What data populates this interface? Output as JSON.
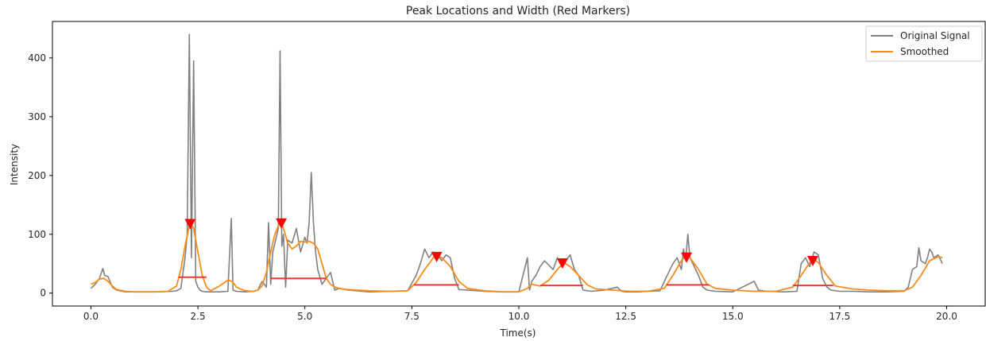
{
  "chart_data": {
    "type": "line",
    "title": "Peak Locations and Width (Red Markers)",
    "xlabel": "Time(s)",
    "ylabel": "Intensity",
    "xlim": [
      -0.9,
      20.9
    ],
    "ylim": [
      -22,
      462
    ],
    "x_ticks": [
      0.0,
      2.5,
      5.0,
      7.5,
      10.0,
      12.5,
      15.0,
      17.5,
      20.0
    ],
    "x_tick_labels": [
      "0.0",
      "2.5",
      "5.0",
      "7.5",
      "10.0",
      "12.5",
      "15.0",
      "17.5",
      "20.0"
    ],
    "y_ticks": [
      0,
      100,
      200,
      300,
      400
    ],
    "y_tick_labels": [
      "0",
      "100",
      "200",
      "300",
      "400"
    ],
    "grid": false,
    "legend_position": "top-right",
    "colors": {
      "original": "#808080",
      "smoothed": "#ff8c1a",
      "markers": "#ff0000",
      "width_lines": "#ee3a2e"
    },
    "series": [
      {
        "name": "Original Signal",
        "x": [
          0.0,
          0.1,
          0.2,
          0.28,
          0.32,
          0.4,
          0.5,
          0.6,
          0.8,
          1.0,
          1.3,
          1.6,
          1.9,
          2.0,
          2.1,
          2.2,
          2.25,
          2.3,
          2.35,
          2.4,
          2.45,
          2.5,
          2.55,
          2.6,
          2.7,
          2.8,
          3.0,
          3.2,
          3.28,
          3.32,
          3.4,
          3.6,
          3.8,
          3.9,
          4.0,
          4.1,
          4.15,
          4.2,
          4.25,
          4.3,
          4.38,
          4.42,
          4.46,
          4.5,
          4.55,
          4.6,
          4.7,
          4.8,
          4.9,
          5.0,
          5.05,
          5.1,
          5.15,
          5.2,
          5.25,
          5.3,
          5.4,
          5.5,
          5.6,
          5.7,
          5.8,
          6.0,
          6.5,
          7.0,
          7.4,
          7.6,
          7.7,
          7.8,
          7.9,
          8.0,
          8.1,
          8.2,
          8.3,
          8.4,
          8.5,
          8.6,
          8.8,
          9.2,
          9.6,
          10.0,
          10.2,
          10.25,
          10.3,
          10.4,
          10.5,
          10.6,
          10.8,
          10.9,
          11.0,
          11.1,
          11.2,
          11.3,
          11.4,
          11.5,
          11.7,
          12.0,
          12.3,
          12.4,
          12.5,
          12.8,
          13.0,
          13.3,
          13.5,
          13.6,
          13.7,
          13.8,
          13.85,
          13.9,
          13.95,
          14.0,
          14.1,
          14.2,
          14.3,
          14.4,
          14.6,
          15.0,
          15.5,
          15.6,
          15.8,
          16.2,
          16.5,
          16.6,
          16.7,
          16.8,
          16.9,
          17.0,
          17.1,
          17.2,
          17.3,
          17.5,
          17.8,
          18.2,
          18.6,
          19.0,
          19.1,
          19.2,
          19.3,
          19.35,
          19.4,
          19.5,
          19.55,
          19.6,
          19.65,
          19.7,
          19.8,
          19.9
        ],
        "y": [
          8,
          15,
          25,
          42,
          30,
          28,
          10,
          5,
          2,
          2,
          2,
          2,
          3,
          4,
          8,
          60,
          100,
          440,
          60,
          395,
          20,
          10,
          5,
          3,
          2,
          2,
          2,
          3,
          127,
          5,
          3,
          2,
          3,
          5,
          20,
          10,
          120,
          15,
          70,
          85,
          110,
          412,
          80,
          100,
          10,
          90,
          85,
          110,
          70,
          95,
          85,
          120,
          205,
          120,
          70,
          40,
          15,
          25,
          35,
          5,
          8,
          5,
          2,
          3,
          4,
          30,
          50,
          75,
          60,
          70,
          65,
          55,
          65,
          60,
          25,
          6,
          5,
          3,
          2,
          2,
          60,
          5,
          20,
          30,
          45,
          55,
          40,
          60,
          45,
          55,
          65,
          40,
          30,
          5,
          3,
          5,
          10,
          3,
          2,
          2,
          3,
          4,
          35,
          50,
          60,
          40,
          75,
          55,
          100,
          60,
          45,
          30,
          10,
          5,
          3,
          2,
          20,
          5,
          3,
          2,
          3,
          50,
          60,
          45,
          70,
          65,
          25,
          10,
          5,
          3,
          3,
          2,
          2,
          3,
          10,
          40,
          45,
          77,
          55,
          50,
          60,
          75,
          70,
          60,
          65,
          50
        ]
      },
      {
        "name": "Smoothed",
        "x": [
          0.0,
          0.1,
          0.2,
          0.3,
          0.4,
          0.5,
          0.6,
          0.8,
          1.0,
          1.5,
          1.8,
          2.0,
          2.1,
          2.2,
          2.3,
          2.35,
          2.4,
          2.5,
          2.6,
          2.7,
          2.8,
          3.0,
          3.2,
          3.3,
          3.4,
          3.6,
          3.8,
          3.9,
          4.0,
          4.1,
          4.2,
          4.3,
          4.4,
          4.45,
          4.5,
          4.6,
          4.7,
          4.8,
          4.9,
          5.0,
          5.1,
          5.2,
          5.3,
          5.4,
          5.5,
          5.6,
          5.7,
          5.8,
          6.0,
          6.5,
          7.0,
          7.4,
          7.6,
          7.8,
          8.0,
          8.1,
          8.2,
          8.4,
          8.6,
          8.8,
          9.2,
          9.6,
          10.0,
          10.2,
          10.3,
          10.5,
          10.7,
          10.9,
          11.05,
          11.2,
          11.4,
          11.6,
          11.8,
          12.2,
          12.6,
          13.0,
          13.4,
          13.6,
          13.8,
          13.9,
          14.0,
          14.2,
          14.4,
          14.6,
          15.0,
          15.5,
          16.0,
          16.4,
          16.6,
          16.8,
          16.9,
          17.0,
          17.2,
          17.4,
          17.8,
          18.2,
          18.6,
          19.0,
          19.2,
          19.4,
          19.6,
          19.8,
          19.9
        ],
        "y": [
          15,
          18,
          24,
          25,
          20,
          12,
          6,
          3,
          2,
          2,
          3,
          12,
          40,
          80,
          115,
          117,
          110,
          70,
          30,
          10,
          4,
          12,
          22,
          20,
          10,
          4,
          3,
          5,
          12,
          35,
          70,
          100,
          118,
          120,
          110,
          85,
          75,
          80,
          88,
          87,
          88,
          85,
          75,
          50,
          25,
          15,
          10,
          8,
          6,
          4,
          3,
          4,
          18,
          40,
          60,
          64,
          60,
          45,
          20,
          8,
          4,
          2,
          2,
          8,
          15,
          12,
          22,
          40,
          52,
          45,
          30,
          14,
          7,
          5,
          3,
          3,
          8,
          30,
          55,
          62,
          60,
          40,
          15,
          8,
          5,
          3,
          3,
          10,
          30,
          52,
          57,
          52,
          30,
          12,
          7,
          5,
          4,
          4,
          10,
          30,
          55,
          62,
          60
        ]
      }
    ],
    "peaks": {
      "x": [
        2.32,
        4.45,
        8.08,
        11.02,
        13.92,
        16.87
      ],
      "y": [
        118,
        119,
        62,
        51,
        61,
        55
      ]
    },
    "widths": [
      {
        "x_start": 2.05,
        "x_end": 2.7,
        "y": 27
      },
      {
        "x_start": 4.2,
        "x_end": 5.5,
        "y": 25
      },
      {
        "x_start": 7.55,
        "x_end": 8.6,
        "y": 14
      },
      {
        "x_start": 10.5,
        "x_end": 11.5,
        "y": 13
      },
      {
        "x_start": 13.45,
        "x_end": 14.45,
        "y": 14
      },
      {
        "x_start": 16.4,
        "x_end": 17.35,
        "y": 13
      }
    ]
  }
}
